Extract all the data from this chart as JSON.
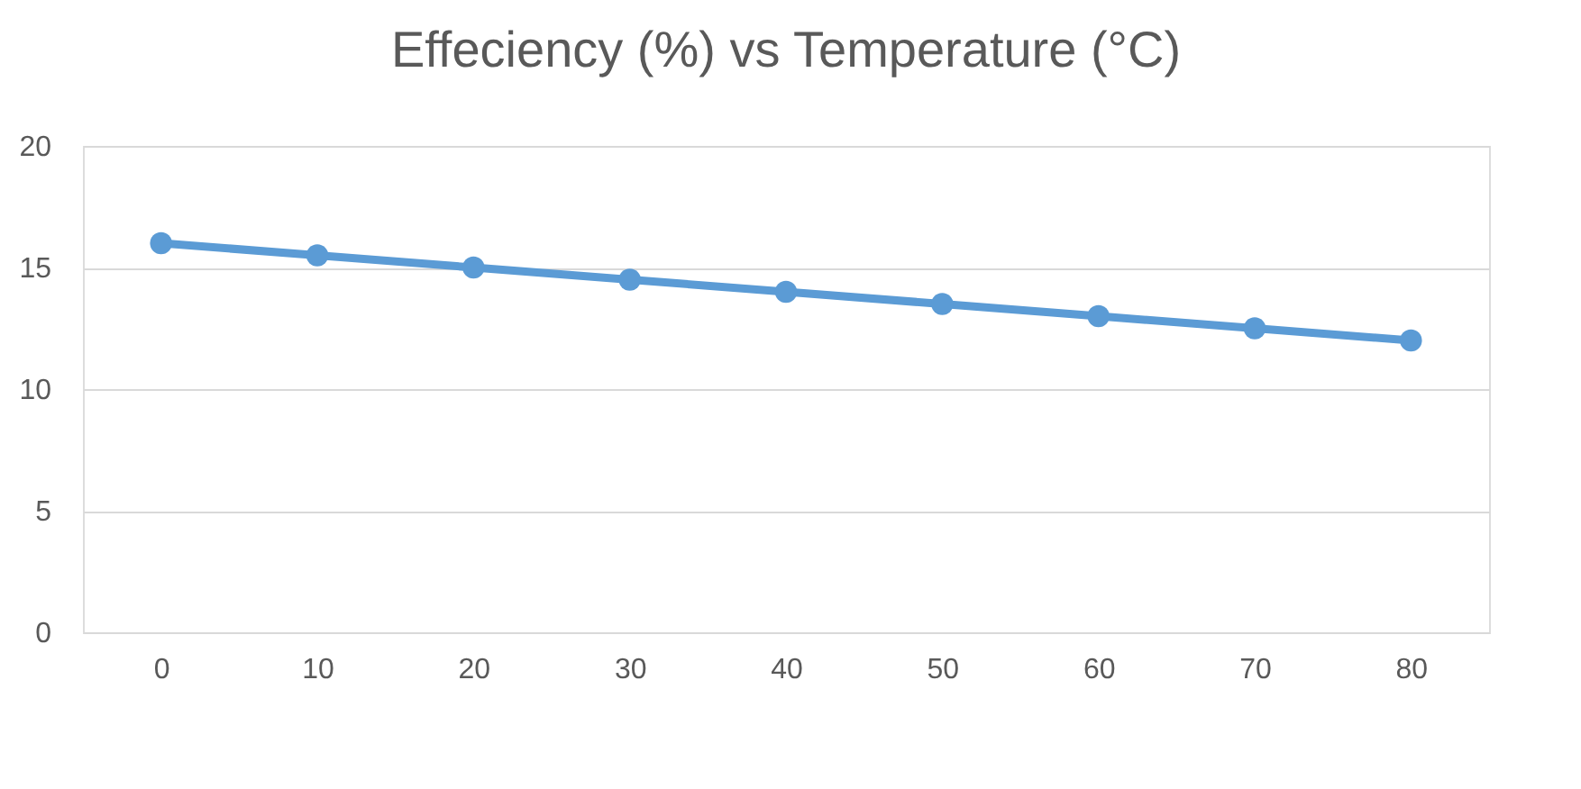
{
  "chart_data": {
    "type": "line",
    "title": "Effeciency (%) vs Temperature (°C)",
    "categories": [
      "0",
      "10",
      "20",
      "30",
      "40",
      "50",
      "60",
      "70",
      "80"
    ],
    "series": [
      {
        "color": "#5b9bd5",
        "values": [
          16,
          15.5,
          15,
          14.5,
          14,
          13.5,
          13,
          12.5,
          12
        ]
      }
    ],
    "ylim": [
      0,
      20
    ],
    "yticks": [
      0,
      5,
      10,
      15,
      20
    ],
    "grid": "y",
    "marker": "circle",
    "line_style": "solid"
  }
}
